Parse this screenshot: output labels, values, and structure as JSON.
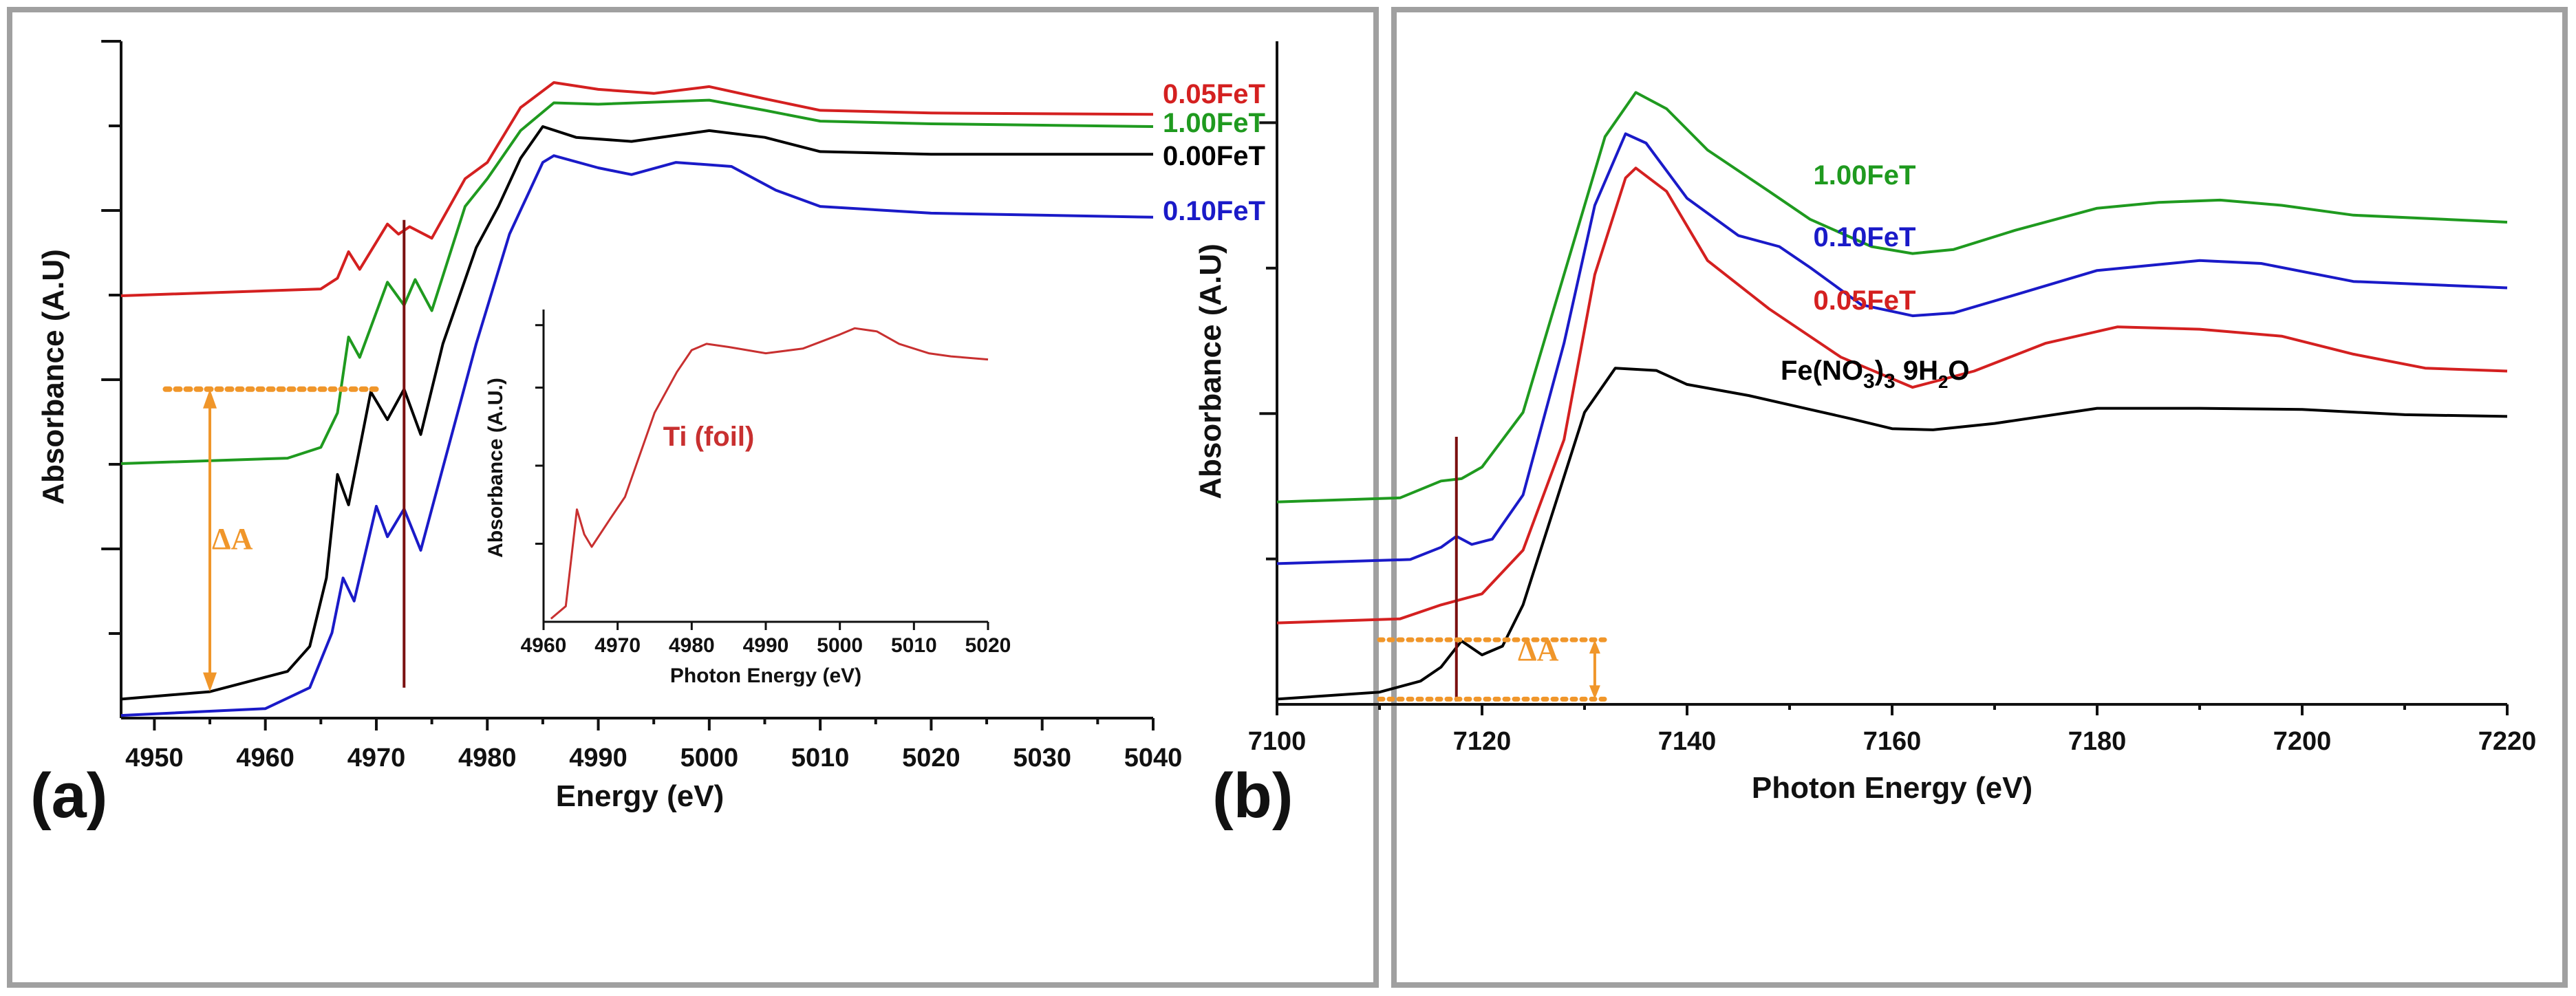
{
  "chart_data": [
    {
      "panel": "(a)",
      "type": "line",
      "xlabel": "Energy (eV)",
      "ylabel": "Absorbance (A.U)",
      "xlim": [
        4947,
        5040
      ],
      "ylim": [
        0,
        1
      ],
      "xticks": [
        4950,
        4960,
        4970,
        4980,
        4990,
        5000,
        5010,
        5020,
        5030,
        5040
      ],
      "yticks": [
        0.125,
        0.25,
        0.375,
        0.5,
        0.625,
        0.75,
        0.875,
        1.0
      ],
      "series": [
        {
          "name": "0.05FeT",
          "color": "#d42020",
          "points": [
            [
              4947,
              0.624
            ],
            [
              4965,
              0.634
            ],
            [
              4966.5,
              0.65
            ],
            [
              4967.5,
              0.689
            ],
            [
              4968.5,
              0.663
            ],
            [
              4971,
              0.73
            ],
            [
              4972,
              0.715
            ],
            [
              4973,
              0.726
            ],
            [
              4975,
              0.709
            ],
            [
              4978,
              0.797
            ],
            [
              4980,
              0.821
            ],
            [
              4983,
              0.902
            ],
            [
              4986,
              0.939
            ],
            [
              4990,
              0.929
            ],
            [
              4995,
              0.923
            ],
            [
              5000,
              0.933
            ],
            [
              5005,
              0.915
            ],
            [
              5010,
              0.898
            ],
            [
              5020,
              0.894
            ],
            [
              5040,
              0.892
            ]
          ]
        },
        {
          "name": "1.00FeT",
          "color": "#1f9a1f",
          "points": [
            [
              4947,
              0.376
            ],
            [
              4962,
              0.384
            ],
            [
              4965,
              0.4
            ],
            [
              4966.5,
              0.451
            ],
            [
              4967.5,
              0.563
            ],
            [
              4968.5,
              0.533
            ],
            [
              4971,
              0.644
            ],
            [
              4972.5,
              0.61
            ],
            [
              4973.5,
              0.648
            ],
            [
              4975,
              0.602
            ],
            [
              4978,
              0.756
            ],
            [
              4980,
              0.797
            ],
            [
              4983,
              0.868
            ],
            [
              4986,
              0.909
            ],
            [
              4990,
              0.907
            ],
            [
              5000,
              0.913
            ],
            [
              5005,
              0.898
            ],
            [
              5010,
              0.882
            ],
            [
              5020,
              0.878
            ],
            [
              5040,
              0.874
            ]
          ]
        },
        {
          "name": "0.00FeT",
          "color": "#000000",
          "points": [
            [
              4947,
              0.028
            ],
            [
              4955,
              0.039
            ],
            [
              4962,
              0.069
            ],
            [
              4964,
              0.106
            ],
            [
              4965.5,
              0.207
            ],
            [
              4966.5,
              0.36
            ],
            [
              4967.5,
              0.315
            ],
            [
              4969.5,
              0.482
            ],
            [
              4971,
              0.441
            ],
            [
              4972.5,
              0.486
            ],
            [
              4974,
              0.419
            ],
            [
              4976,
              0.553
            ],
            [
              4979,
              0.695
            ],
            [
              4981,
              0.756
            ],
            [
              4983,
              0.827
            ],
            [
              4985,
              0.874
            ],
            [
              4988,
              0.858
            ],
            [
              4993,
              0.852
            ],
            [
              5000,
              0.868
            ],
            [
              5005,
              0.858
            ],
            [
              5010,
              0.837
            ],
            [
              5020,
              0.833
            ],
            [
              5040,
              0.833
            ]
          ]
        },
        {
          "name": "0.10FeT",
          "color": "#1a1ac8",
          "points": [
            [
              4947,
              0.004
            ],
            [
              4960,
              0.014
            ],
            [
              4964,
              0.045
            ],
            [
              4966,
              0.126
            ],
            [
              4967,
              0.207
            ],
            [
              4968,
              0.173
            ],
            [
              4970,
              0.313
            ],
            [
              4971,
              0.268
            ],
            [
              4972.5,
              0.309
            ],
            [
              4974,
              0.248
            ],
            [
              4976,
              0.37
            ],
            [
              4979,
              0.553
            ],
            [
              4982,
              0.715
            ],
            [
              4985,
              0.821
            ],
            [
              4986,
              0.831
            ],
            [
              4990,
              0.813
            ],
            [
              4993,
              0.803
            ],
            [
              4997,
              0.821
            ],
            [
              5002,
              0.815
            ],
            [
              5006,
              0.78
            ],
            [
              5010,
              0.756
            ],
            [
              5020,
              0.746
            ],
            [
              5040,
              0.74
            ]
          ]
        }
      ],
      "annotations": {
        "delta_label": "ΔA",
        "reference_line_x": 4972.5,
        "delta_x": 4955,
        "delta_range": [
          0.039,
          0.486
        ]
      },
      "inset": {
        "type": "line",
        "xlabel": "Photon Energy (eV)",
        "ylabel": "Absorbance (A.U.)",
        "xlim": [
          4960,
          5020
        ],
        "ylim": [
          0,
          1
        ],
        "xticks": [
          4960,
          4970,
          4980,
          4990,
          5000,
          5010,
          5020
        ],
        "yticks": [
          0.25,
          0.5,
          0.75,
          0.95
        ],
        "series": [
          {
            "name": "Ti (foil)",
            "color": "#c83030",
            "points": [
              [
                4961,
                0.01
              ],
              [
                4963,
                0.05
              ],
              [
                4964.5,
                0.36
              ],
              [
                4965.5,
                0.28
              ],
              [
                4966.5,
                0.24
              ],
              [
                4969,
                0.33
              ],
              [
                4971,
                0.4
              ],
              [
                4975,
                0.67
              ],
              [
                4978,
                0.8
              ],
              [
                4980,
                0.87
              ],
              [
                4982,
                0.89
              ],
              [
                4985,
                0.88
              ],
              [
                4990,
                0.86
              ],
              [
                4995,
                0.875
              ],
              [
                5000,
                0.92
              ],
              [
                5002,
                0.94
              ],
              [
                5005,
                0.93
              ],
              [
                5008,
                0.89
              ],
              [
                5012,
                0.86
              ],
              [
                5015,
                0.85
              ],
              [
                5020,
                0.84
              ]
            ]
          }
        ]
      }
    },
    {
      "panel": "(b)",
      "type": "line",
      "xlabel": "Photon Energy (eV)",
      "ylabel": "Absorbance (A.U)",
      "xlim": [
        7100,
        7220
      ],
      "ylim": [
        0,
        1.14
      ],
      "xticks": [
        7100,
        7120,
        7140,
        7160,
        7180,
        7200,
        7220
      ],
      "yticks": [
        0.25,
        0.5,
        0.75,
        1.0
      ],
      "series": [
        {
          "name": "1.00FeT",
          "color": "#1f9a1f",
          "points": [
            [
              7100,
              0.348
            ],
            [
              7112,
              0.355
            ],
            [
              7116,
              0.384
            ],
            [
              7118,
              0.388
            ],
            [
              7120,
              0.408
            ],
            [
              7124,
              0.502
            ],
            [
              7128,
              0.739
            ],
            [
              7132,
              0.976
            ],
            [
              7135,
              1.052
            ],
            [
              7138,
              1.024
            ],
            [
              7142,
              0.953
            ],
            [
              7148,
              0.882
            ],
            [
              7152,
              0.834
            ],
            [
              7158,
              0.787
            ],
            [
              7162,
              0.775
            ],
            [
              7166,
              0.782
            ],
            [
              7172,
              0.815
            ],
            [
              7180,
              0.853
            ],
            [
              7186,
              0.863
            ],
            [
              7192,
              0.867
            ],
            [
              7198,
              0.858
            ],
            [
              7205,
              0.841
            ],
            [
              7220,
              0.829
            ]
          ]
        },
        {
          "name": "0.10FeT",
          "color": "#1a1ac8",
          "points": [
            [
              7100,
              0.242
            ],
            [
              7113,
              0.249
            ],
            [
              7116,
              0.27
            ],
            [
              7117.5,
              0.289
            ],
            [
              7119,
              0.275
            ],
            [
              7121,
              0.284
            ],
            [
              7124,
              0.36
            ],
            [
              7128,
              0.621
            ],
            [
              7131,
              0.858
            ],
            [
              7134,
              0.981
            ],
            [
              7136,
              0.965
            ],
            [
              7140,
              0.87
            ],
            [
              7145,
              0.806
            ],
            [
              7149,
              0.787
            ],
            [
              7152,
              0.751
            ],
            [
              7157,
              0.687
            ],
            [
              7162,
              0.668
            ],
            [
              7166,
              0.673
            ],
            [
              7172,
              0.704
            ],
            [
              7180,
              0.746
            ],
            [
              7190,
              0.763
            ],
            [
              7196,
              0.758
            ],
            [
              7205,
              0.727
            ],
            [
              7220,
              0.716
            ]
          ]
        },
        {
          "name": "0.05FeT",
          "color": "#d42020",
          "points": [
            [
              7100,
              0.14
            ],
            [
              7112,
              0.147
            ],
            [
              7116,
              0.171
            ],
            [
              7120,
              0.19
            ],
            [
              7124,
              0.265
            ],
            [
              7128,
              0.455
            ],
            [
              7131,
              0.739
            ],
            [
              7134,
              0.905
            ],
            [
              7135,
              0.922
            ],
            [
              7138,
              0.882
            ],
            [
              7142,
              0.763
            ],
            [
              7148,
              0.68
            ],
            [
              7155,
              0.597
            ],
            [
              7162,
              0.545
            ],
            [
              7168,
              0.573
            ],
            [
              7175,
              0.621
            ],
            [
              7182,
              0.649
            ],
            [
              7190,
              0.645
            ],
            [
              7198,
              0.633
            ],
            [
              7205,
              0.602
            ],
            [
              7212,
              0.578
            ],
            [
              7220,
              0.573
            ]
          ]
        },
        {
          "name": "Fe(NO3)3 9H2O",
          "color": "#000000",
          "label_parts": [
            "Fe(NO",
            "3",
            ")",
            "3",
            " 9H",
            "2",
            "O"
          ],
          "points": [
            [
              7100,
              0.009
            ],
            [
              7110,
              0.021
            ],
            [
              7114,
              0.04
            ],
            [
              7116,
              0.064
            ],
            [
              7118,
              0.109
            ],
            [
              7120,
              0.085
            ],
            [
              7122,
              0.1
            ],
            [
              7124,
              0.171
            ],
            [
              7127,
              0.336
            ],
            [
              7130,
              0.502
            ],
            [
              7133,
              0.578
            ],
            [
              7137,
              0.574
            ],
            [
              7140,
              0.55
            ],
            [
              7146,
              0.531
            ],
            [
              7152,
              0.507
            ],
            [
              7156,
              0.491
            ],
            [
              7160,
              0.474
            ],
            [
              7164,
              0.472
            ],
            [
              7170,
              0.483
            ],
            [
              7180,
              0.509
            ],
            [
              7190,
              0.509
            ],
            [
              7200,
              0.507
            ],
            [
              7210,
              0.498
            ],
            [
              7220,
              0.495
            ]
          ]
        }
      ],
      "annotations": {
        "delta_label": "ΔA",
        "reference_line_x": 7117.5,
        "delta_x": 7131,
        "delta_range": [
          0.009,
          0.111
        ]
      }
    }
  ]
}
